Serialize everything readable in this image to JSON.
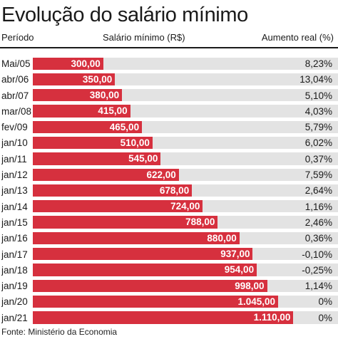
{
  "title": "Evolução do salário mínimo",
  "headers": {
    "period": "Período",
    "salary": "Salário mínimo (R$)",
    "raise": "Aumento real (%)"
  },
  "source": "Fonte: Ministério da Economia",
  "colors": {
    "bar": "#d6303e",
    "track": "#e3e3e3",
    "text": "#1a1a1a"
  },
  "chart_data": {
    "type": "bar",
    "orientation": "horizontal",
    "title": "Evolução do salário mínimo",
    "xlim": [
      0,
      1300
    ],
    "categories": [
      "Mai/05",
      "abr/06",
      "abr/07",
      "mar/08",
      "fev/09",
      "jan/10",
      "jan/11",
      "jan/12",
      "jan/13",
      "jan/14",
      "jan/15",
      "jan/16",
      "jan/17",
      "jan/18",
      "jan/19",
      "jan/20",
      "jan/21"
    ],
    "values": [
      300,
      350,
      380,
      415,
      465,
      510,
      545,
      622,
      678,
      724,
      788,
      880,
      937,
      954,
      998,
      1045,
      1110
    ],
    "value_labels": [
      "300,00",
      "350,00",
      "380,00",
      "415,00",
      "465,00",
      "510,00",
      "545,00",
      "622,00",
      "678,00",
      "724,00",
      "788,00",
      "880,00",
      "937,00",
      "954,00",
      "998,00",
      "1.045,00",
      "1.110,00"
    ],
    "raise_labels": [
      "8,23%",
      "13,04%",
      "5,10%",
      "4,03%",
      "5,79%",
      "6,02%",
      "0,37%",
      "7,59%",
      "2,64%",
      "1,16%",
      "2,46%",
      "0,36%",
      "-0,10%",
      "-0,25%",
      "1,14%",
      "0%",
      "0%"
    ]
  }
}
